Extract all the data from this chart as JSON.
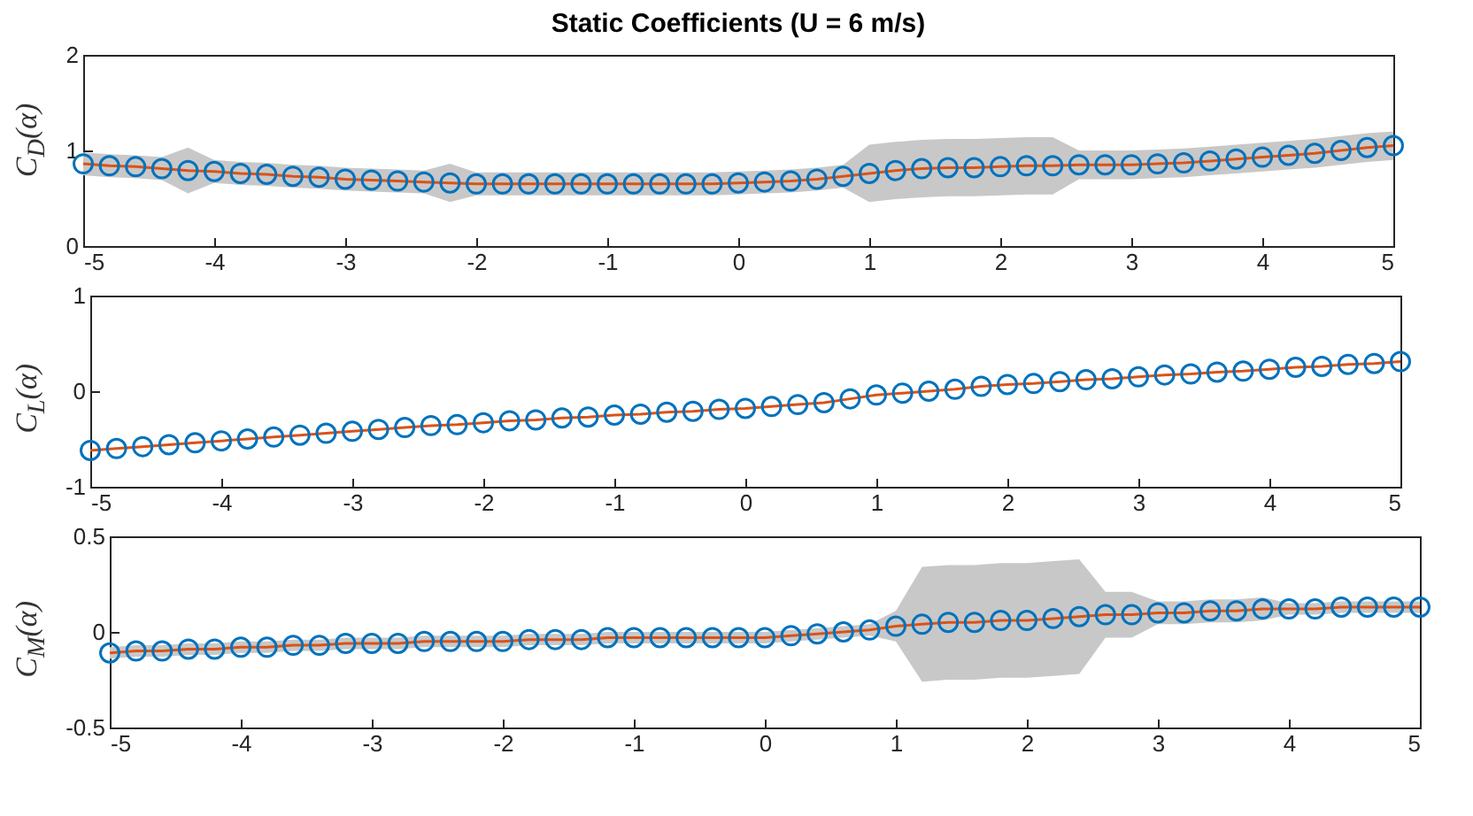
{
  "chart_data": [
    {
      "type": "line",
      "title": "Static Coefficients (U = 6 m/s)",
      "ylabel": "C$_{D}$(α)",
      "xlim": [
        -5,
        5
      ],
      "xticks": [
        -5,
        -4,
        -3,
        -2,
        -1,
        0,
        1,
        2,
        3,
        4,
        5
      ],
      "ylim": [
        0,
        2
      ],
      "yticks": [
        0,
        1,
        2
      ],
      "x": [
        -5,
        -4.8,
        -4.6,
        -4.4,
        -4.2,
        -4,
        -3.8,
        -3.6,
        -3.4,
        -3.2,
        -3,
        -2.8,
        -2.6,
        -2.4,
        -2.2,
        -2,
        -1.8,
        -1.6,
        -1.4,
        -1.2,
        -1,
        -0.8,
        -0.6,
        -0.4,
        -0.2,
        0,
        0.2,
        0.4,
        0.6,
        0.8,
        1,
        1.2,
        1.4,
        1.6,
        1.8,
        2,
        2.2,
        2.4,
        2.6,
        2.8,
        3,
        3.2,
        3.4,
        3.6,
        3.8,
        4,
        4.2,
        4.4,
        4.6,
        4.8,
        5
      ],
      "series": [
        {
          "type": "line",
          "color": "#d95319",
          "values": [
            0.86,
            0.84,
            0.83,
            0.81,
            0.79,
            0.78,
            0.76,
            0.75,
            0.73,
            0.72,
            0.7,
            0.69,
            0.68,
            0.67,
            0.66,
            0.65,
            0.65,
            0.65,
            0.65,
            0.65,
            0.65,
            0.65,
            0.65,
            0.65,
            0.65,
            0.66,
            0.67,
            0.68,
            0.7,
            0.73,
            0.76,
            0.79,
            0.81,
            0.82,
            0.82,
            0.83,
            0.84,
            0.84,
            0.85,
            0.85,
            0.85,
            0.86,
            0.87,
            0.89,
            0.91,
            0.93,
            0.95,
            0.97,
            1.0,
            1.03,
            1.05
          ],
          "lower": [
            0.74,
            0.72,
            0.71,
            0.69,
            0.55,
            0.66,
            0.64,
            0.63,
            0.61,
            0.6,
            0.58,
            0.57,
            0.56,
            0.55,
            0.46,
            0.53,
            0.53,
            0.53,
            0.53,
            0.53,
            0.53,
            0.53,
            0.53,
            0.53,
            0.53,
            0.54,
            0.55,
            0.56,
            0.58,
            0.61,
            0.46,
            0.49,
            0.51,
            0.52,
            0.52,
            0.53,
            0.54,
            0.54,
            0.7,
            0.7,
            0.7,
            0.71,
            0.72,
            0.74,
            0.76,
            0.78,
            0.8,
            0.82,
            0.85,
            0.88,
            0.9
          ],
          "upper": [
            0.98,
            0.96,
            0.95,
            0.93,
            1.03,
            0.9,
            0.88,
            0.87,
            0.85,
            0.84,
            0.82,
            0.81,
            0.8,
            0.79,
            0.86,
            0.77,
            0.77,
            0.77,
            0.77,
            0.77,
            0.77,
            0.77,
            0.77,
            0.77,
            0.77,
            0.78,
            0.79,
            0.8,
            0.82,
            0.85,
            1.06,
            1.09,
            1.11,
            1.12,
            1.12,
            1.13,
            1.14,
            1.14,
            1.0,
            1.0,
            1.0,
            1.01,
            1.02,
            1.04,
            1.06,
            1.08,
            1.1,
            1.12,
            1.15,
            1.18,
            1.2
          ]
        },
        {
          "type": "scatter",
          "color": "#0072bd",
          "marker": "circle",
          "values": [
            0.86,
            0.84,
            0.83,
            0.81,
            0.79,
            0.78,
            0.76,
            0.75,
            0.73,
            0.72,
            0.7,
            0.69,
            0.68,
            0.67,
            0.66,
            0.65,
            0.65,
            0.65,
            0.65,
            0.65,
            0.65,
            0.65,
            0.65,
            0.65,
            0.65,
            0.66,
            0.67,
            0.68,
            0.7,
            0.73,
            0.76,
            0.79,
            0.81,
            0.82,
            0.82,
            0.83,
            0.84,
            0.84,
            0.85,
            0.85,
            0.85,
            0.86,
            0.87,
            0.89,
            0.91,
            0.93,
            0.95,
            0.97,
            1.0,
            1.03,
            1.05
          ]
        }
      ]
    },
    {
      "type": "line",
      "ylabel": "C$_{L}$(α)",
      "xlim": [
        -5,
        5
      ],
      "xticks": [
        -5,
        -4,
        -3,
        -2,
        -1,
        0,
        1,
        2,
        3,
        4,
        5
      ],
      "ylim": [
        -1,
        1
      ],
      "yticks": [
        -1,
        0,
        1
      ],
      "x": [
        -5,
        -4.8,
        -4.6,
        -4.4,
        -4.2,
        -4,
        -3.8,
        -3.6,
        -3.4,
        -3.2,
        -3,
        -2.8,
        -2.6,
        -2.4,
        -2.2,
        -2,
        -1.8,
        -1.6,
        -1.4,
        -1.2,
        -1,
        -0.8,
        -0.6,
        -0.4,
        -0.2,
        0,
        0.2,
        0.4,
        0.6,
        0.8,
        1,
        1.2,
        1.4,
        1.6,
        1.8,
        2,
        2.2,
        2.4,
        2.6,
        2.8,
        3,
        3.2,
        3.4,
        3.6,
        3.8,
        4,
        4.2,
        4.4,
        4.6,
        4.8,
        5
      ],
      "series": [
        {
          "type": "line",
          "color": "#d95319",
          "values": [
            -0.62,
            -0.6,
            -0.58,
            -0.56,
            -0.54,
            -0.52,
            -0.5,
            -0.48,
            -0.46,
            -0.44,
            -0.42,
            -0.4,
            -0.38,
            -0.36,
            -0.35,
            -0.33,
            -0.31,
            -0.3,
            -0.28,
            -0.27,
            -0.25,
            -0.24,
            -0.22,
            -0.21,
            -0.19,
            -0.18,
            -0.16,
            -0.14,
            -0.12,
            -0.08,
            -0.04,
            -0.02,
            0.0,
            0.02,
            0.05,
            0.07,
            0.08,
            0.1,
            0.12,
            0.13,
            0.15,
            0.17,
            0.18,
            0.2,
            0.21,
            0.23,
            0.25,
            0.26,
            0.28,
            0.29,
            0.31
          ]
        },
        {
          "type": "scatter",
          "color": "#0072bd",
          "marker": "circle",
          "values": [
            -0.62,
            -0.6,
            -0.58,
            -0.56,
            -0.54,
            -0.52,
            -0.5,
            -0.48,
            -0.46,
            -0.44,
            -0.42,
            -0.4,
            -0.38,
            -0.36,
            -0.35,
            -0.33,
            -0.31,
            -0.3,
            -0.28,
            -0.27,
            -0.25,
            -0.24,
            -0.22,
            -0.21,
            -0.19,
            -0.18,
            -0.16,
            -0.14,
            -0.12,
            -0.08,
            -0.04,
            -0.02,
            0.0,
            0.02,
            0.05,
            0.07,
            0.08,
            0.1,
            0.12,
            0.13,
            0.15,
            0.17,
            0.18,
            0.2,
            0.21,
            0.23,
            0.25,
            0.26,
            0.28,
            0.29,
            0.31
          ]
        }
      ]
    },
    {
      "type": "line",
      "ylabel": "C$_{M}$(α)",
      "xlim": [
        -5,
        5
      ],
      "xticks": [
        -5,
        -4,
        -3,
        -2,
        -1,
        0,
        1,
        2,
        3,
        4,
        5
      ],
      "ylim": [
        -0.5,
        0.5
      ],
      "yticks": [
        -0.5,
        0,
        0.5
      ],
      "x": [
        -5,
        -4.8,
        -4.6,
        -4.4,
        -4.2,
        -4,
        -3.8,
        -3.6,
        -3.4,
        -3.2,
        -3,
        -2.8,
        -2.6,
        -2.4,
        -2.2,
        -2,
        -1.8,
        -1.6,
        -1.4,
        -1.2,
        -1,
        -0.8,
        -0.6,
        -0.4,
        -0.2,
        0,
        0.2,
        0.4,
        0.6,
        0.8,
        1,
        1.2,
        1.4,
        1.6,
        1.8,
        2,
        2.2,
        2.4,
        2.6,
        2.8,
        3,
        3.2,
        3.4,
        3.6,
        3.8,
        4,
        4.2,
        4.4,
        4.6,
        4.8,
        5
      ],
      "series": [
        {
          "type": "line",
          "color": "#d95319",
          "values": [
            -0.11,
            -0.1,
            -0.1,
            -0.09,
            -0.09,
            -0.08,
            -0.08,
            -0.07,
            -0.07,
            -0.06,
            -0.06,
            -0.06,
            -0.05,
            -0.05,
            -0.05,
            -0.05,
            -0.04,
            -0.04,
            -0.04,
            -0.03,
            -0.03,
            -0.03,
            -0.03,
            -0.03,
            -0.03,
            -0.03,
            -0.02,
            -0.01,
            0.0,
            0.01,
            0.03,
            0.04,
            0.05,
            0.05,
            0.06,
            0.06,
            0.07,
            0.08,
            0.09,
            0.09,
            0.1,
            0.1,
            0.11,
            0.11,
            0.12,
            0.12,
            0.12,
            0.13,
            0.13,
            0.13,
            0.13
          ],
          "lower": [
            -0.14,
            -0.13,
            -0.13,
            -0.12,
            -0.12,
            -0.11,
            -0.11,
            -0.1,
            -0.1,
            -0.09,
            -0.09,
            -0.09,
            -0.08,
            -0.08,
            -0.08,
            -0.08,
            -0.07,
            -0.07,
            -0.07,
            -0.06,
            -0.06,
            -0.06,
            -0.06,
            -0.06,
            -0.06,
            -0.06,
            -0.05,
            -0.04,
            -0.03,
            -0.02,
            -0.05,
            -0.26,
            -0.25,
            -0.25,
            -0.24,
            -0.24,
            -0.23,
            -0.22,
            -0.03,
            -0.03,
            0.04,
            0.04,
            0.05,
            0.05,
            0.06,
            0.09,
            0.09,
            0.1,
            0.1,
            0.1,
            0.1
          ],
          "upper": [
            -0.08,
            -0.07,
            -0.07,
            -0.06,
            -0.06,
            -0.05,
            -0.05,
            -0.04,
            -0.04,
            -0.03,
            -0.03,
            -0.03,
            -0.02,
            -0.02,
            -0.02,
            -0.02,
            -0.01,
            -0.01,
            -0.01,
            0.0,
            0.0,
            0.0,
            0.0,
            0.0,
            0.0,
            0.0,
            0.01,
            0.02,
            0.03,
            0.04,
            0.11,
            0.34,
            0.35,
            0.35,
            0.36,
            0.36,
            0.37,
            0.38,
            0.21,
            0.21,
            0.16,
            0.16,
            0.17,
            0.17,
            0.18,
            0.15,
            0.15,
            0.16,
            0.16,
            0.16,
            0.16
          ]
        },
        {
          "type": "scatter",
          "color": "#0072bd",
          "marker": "circle",
          "values": [
            -0.11,
            -0.1,
            -0.1,
            -0.09,
            -0.09,
            -0.08,
            -0.08,
            -0.07,
            -0.07,
            -0.06,
            -0.06,
            -0.06,
            -0.05,
            -0.05,
            -0.05,
            -0.05,
            -0.04,
            -0.04,
            -0.04,
            -0.03,
            -0.03,
            -0.03,
            -0.03,
            -0.03,
            -0.03,
            -0.03,
            -0.02,
            -0.01,
            0.0,
            0.01,
            0.03,
            0.04,
            0.05,
            0.05,
            0.06,
            0.06,
            0.07,
            0.08,
            0.09,
            0.09,
            0.1,
            0.1,
            0.11,
            0.11,
            0.12,
            0.12,
            0.12,
            0.13,
            0.13,
            0.13,
            0.13
          ]
        }
      ]
    }
  ]
}
